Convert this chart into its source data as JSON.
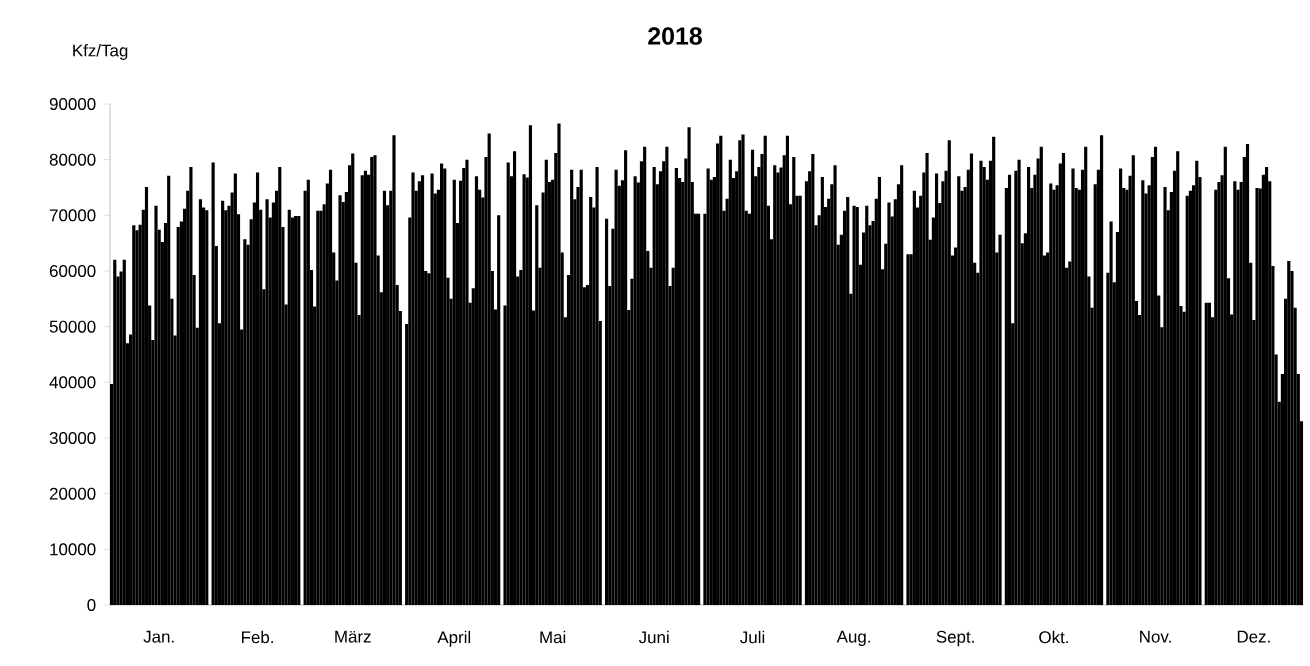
{
  "chart_data": {
    "type": "bar",
    "title": "2018",
    "ylabel": "Kfz/Tag",
    "color": "#000000",
    "ylim": [
      0,
      90000
    ],
    "yticks": [
      0,
      10000,
      20000,
      30000,
      40000,
      50000,
      60000,
      70000,
      80000,
      90000
    ],
    "categories": [
      null,
      null,
      null,
      null,
      null,
      null,
      null,
      null,
      null,
      null,
      null,
      null,
      null,
      null,
      null,
      "Jan.",
      null,
      null,
      null,
      null,
      null,
      null,
      null,
      null,
      null,
      null,
      null,
      null,
      null,
      null,
      null,
      null,
      null,
      null,
      null,
      null,
      null,
      null,
      null,
      null,
      null,
      null,
      null,
      null,
      null,
      null,
      "Feb.",
      null,
      null,
      null,
      null,
      null,
      null,
      null,
      null,
      null,
      null,
      null,
      null,
      null,
      null,
      null,
      null,
      null,
      null,
      null,
      null,
      null,
      null,
      null,
      null,
      null,
      null,
      null,
      null,
      null,
      "März",
      null,
      null,
      null,
      null,
      null,
      null,
      null,
      null,
      null,
      null,
      null,
      null,
      null,
      null,
      null,
      null,
      null,
      null,
      null,
      null,
      null,
      null,
      null,
      null,
      null,
      null,
      null,
      null,
      null,
      null,
      null,
      "April",
      null,
      null,
      null,
      null,
      null,
      null,
      null,
      null,
      null,
      null,
      null,
      null,
      null,
      null,
      null,
      null,
      null,
      null,
      null,
      null,
      null,
      null,
      null,
      null,
      null,
      null,
      null,
      null,
      null,
      null,
      "Mai",
      null,
      null,
      null,
      null,
      null,
      null,
      null,
      null,
      null,
      null,
      null,
      null,
      null,
      null,
      null,
      null,
      null,
      null,
      null,
      null,
      null,
      null,
      null,
      null,
      null,
      null,
      null,
      null,
      null,
      null,
      null,
      "Juni",
      null,
      null,
      null,
      null,
      null,
      null,
      null,
      null,
      null,
      null,
      null,
      null,
      null,
      null,
      null,
      null,
      null,
      null,
      null,
      null,
      null,
      null,
      null,
      null,
      null,
      null,
      null,
      null,
      null,
      null,
      "Juli",
      null,
      null,
      null,
      null,
      null,
      null,
      null,
      null,
      null,
      null,
      null,
      null,
      null,
      null,
      null,
      null,
      null,
      null,
      null,
      null,
      null,
      null,
      null,
      null,
      null,
      null,
      null,
      null,
      null,
      null,
      null,
      "Aug.",
      null,
      null,
      null,
      null,
      null,
      null,
      null,
      null,
      null,
      null,
      null,
      null,
      null,
      null,
      null,
      null,
      null,
      null,
      null,
      null,
      null,
      null,
      null,
      null,
      null,
      null,
      null,
      null,
      null,
      null,
      null,
      "Sept.",
      null,
      null,
      null,
      null,
      null,
      null,
      null,
      null,
      null,
      null,
      null,
      null,
      null,
      null,
      null,
      null,
      null,
      null,
      null,
      null,
      null,
      null,
      null,
      null,
      null,
      null,
      null,
      null,
      null,
      null,
      "Okt.",
      null,
      null,
      null,
      null,
      null,
      null,
      null,
      null,
      null,
      null,
      null,
      null,
      null,
      null,
      null,
      null,
      null,
      null,
      null,
      null,
      null,
      null,
      null,
      null,
      null,
      null,
      null,
      null,
      null,
      null,
      null,
      "Nov.",
      null,
      null,
      null,
      null,
      null,
      null,
      null,
      null,
      null,
      null,
      null,
      null,
      null,
      null,
      null,
      null,
      null,
      null,
      null,
      null,
      null,
      null,
      null,
      null,
      null,
      null,
      null,
      null,
      null,
      null,
      "Dez.",
      null,
      null,
      null,
      null,
      null,
      null,
      null,
      null,
      null,
      null,
      null,
      null,
      null,
      null,
      null
    ],
    "values": [
      39700,
      62000,
      59000,
      59900,
      62000,
      47000,
      48600,
      68200,
      67300,
      68300,
      71000,
      75100,
      53800,
      47600,
      71700,
      67400,
      65200,
      68600,
      77100,
      55000,
      48400,
      67900,
      68900,
      71200,
      74400,
      78700,
      59300,
      49800,
      72900,
      71400,
      70900,
      null,
      79500,
      64500,
      50600,
      72600,
      70900,
      71700,
      74100,
      77500,
      70200,
      49500,
      65700,
      64700,
      69300,
      72300,
      77700,
      71000,
      56700,
      72900,
      69600,
      72300,
      74400,
      78700,
      67900,
      54000,
      71000,
      69600,
      69900,
      69900,
      null,
      74400,
      76400,
      60200,
      53600,
      70800,
      70800,
      72000,
      75700,
      78200,
      63300,
      58300,
      73600,
      72400,
      74200,
      79000,
      81100,
      61500,
      52100,
      77200,
      78000,
      77300,
      80500,
      80800,
      62800,
      56200,
      74400,
      71800,
      74400,
      84400,
      57500,
      52800,
      null,
      50500,
      69600,
      77700,
      74400,
      76100,
      77200,
      60000,
      59600,
      77500,
      73900,
      74600,
      79300,
      78400,
      58800,
      55000,
      76400,
      68600,
      76200,
      78500,
      80000,
      54300,
      56900,
      77000,
      74600,
      73200,
      80500,
      84700,
      60000,
      53100,
      70000,
      null,
      53800,
      79500,
      77000,
      81500,
      59000,
      60200,
      77400,
      76800,
      86200,
      52900,
      71800,
      60600,
      74100,
      80000,
      76000,
      76400,
      81200,
      86500,
      63300,
      51700,
      59300,
      78200,
      72900,
      75100,
      78200,
      57100,
      57500,
      73300,
      71400,
      78700,
      51000,
      null,
      69400,
      57300,
      67600,
      78200,
      75300,
      76300,
      81700,
      53000,
      58600,
      77000,
      75900,
      79700,
      82300,
      63600,
      60600,
      78700,
      75600,
      77900,
      79700,
      82300,
      57300,
      60600,
      78500,
      76700,
      76000,
      80200,
      85800,
      76000,
      70300,
      70300,
      null,
      70300,
      78400,
      76400,
      76900,
      82900,
      84300,
      70800,
      73000,
      80000,
      76700,
      77900,
      83500,
      84500,
      70800,
      70300,
      81800,
      77000,
      78700,
      81000,
      84300,
      71700,
      65700,
      79000,
      77700,
      78600,
      80800,
      84300,
      72000,
      80500,
      73500,
      73500,
      null,
      76100,
      77900,
      81000,
      68200,
      70000,
      76900,
      71500,
      73000,
      75600,
      79000,
      64700,
      66500,
      70800,
      73300,
      55900,
      71700,
      71500,
      61100,
      66900,
      71700,
      68200,
      69000,
      73000,
      76900,
      60300,
      64900,
      72300,
      69800,
      72900,
      75600,
      79000,
      null,
      63000,
      63000,
      74400,
      71400,
      73500,
      77700,
      81200,
      65600,
      69600,
      77500,
      72200,
      76100,
      78000,
      83500,
      62800,
      64200,
      77000,
      74400,
      75100,
      78200,
      81100,
      61500,
      59700,
      79800,
      78700,
      76400,
      79800,
      84100,
      63300,
      66500,
      null,
      74900,
      77300,
      50600,
      78000,
      80000,
      65000,
      66800,
      78700,
      74900,
      77300,
      80200,
      82300,
      62800,
      63300,
      75700,
      74600,
      75400,
      79300,
      81200,
      60600,
      61700,
      78400,
      74900,
      74600,
      78200,
      82300,
      59000,
      53400,
      75600,
      78200,
      84400,
      null,
      59700,
      68900,
      58000,
      67000,
      78400,
      74900,
      74600,
      77100,
      80800,
      54600,
      52100,
      76300,
      73900,
      75400,
      80500,
      82300,
      55600,
      49900,
      75100,
      70900,
      74200,
      78000,
      81500,
      53700,
      52700,
      73500,
      74400,
      75400,
      79800,
      76900,
      null,
      54300,
      54300,
      51700,
      74600,
      76000,
      77200,
      82300,
      58700,
      52200,
      76100,
      74600,
      76000,
      80500,
      82800,
      61500,
      51200,
      74900,
      74800,
      77300,
      78700,
      76100,
      60900,
      45000,
      36500,
      41500,
      55000,
      61800,
      60000,
      53400,
      41500,
      33000
    ]
  }
}
